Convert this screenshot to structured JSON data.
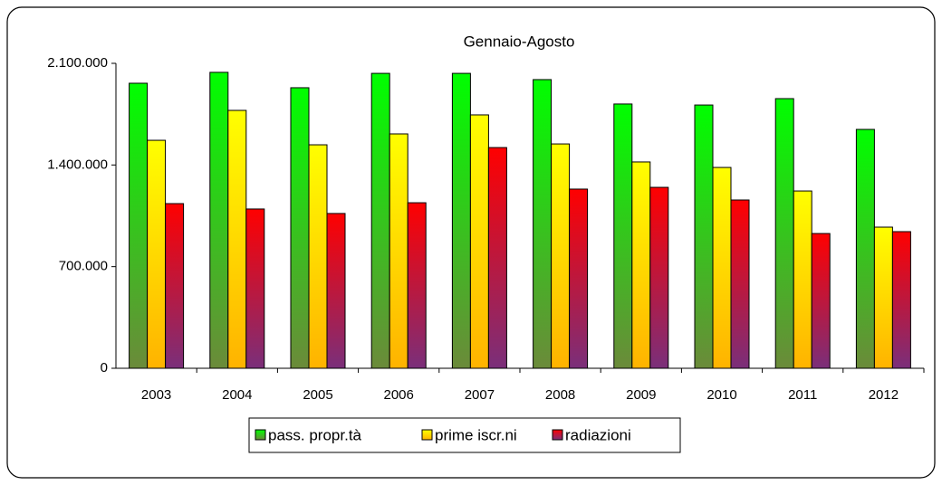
{
  "chart_data": {
    "type": "bar",
    "title": "Gennaio-Agosto",
    "categories": [
      "2003",
      "2004",
      "2005",
      "2006",
      "2007",
      "2008",
      "2009",
      "2010",
      "2011",
      "2012"
    ],
    "series": [
      {
        "name": "pass. propr.tà",
        "color": "#00ff00",
        "values": [
          1963000,
          2038000,
          1932000,
          2031000,
          2031000,
          1988000,
          1820000,
          1813000,
          1857000,
          1645000
        ]
      },
      {
        "name": "prime iscr.ni",
        "color": "#ffff00",
        "values": [
          1570000,
          1776000,
          1539000,
          1614000,
          1745000,
          1545000,
          1421000,
          1383000,
          1221000,
          972000
        ]
      },
      {
        "name": "radiazioni",
        "color": "#ff0000",
        "values": [
          1134000,
          1097000,
          1066000,
          1140000,
          1520000,
          1234000,
          1246000,
          1159000,
          928000,
          941000
        ]
      }
    ],
    "ylim": [
      0,
      2100000
    ],
    "yticks": [
      0,
      {
        "value": 700000,
        "label": "700.000"
      },
      {
        "value": 1400000,
        "label": "1.400.000"
      },
      {
        "value": 2100000,
        "label": "2.100.000"
      }
    ],
    "grid": false,
    "legend": "bottom"
  }
}
